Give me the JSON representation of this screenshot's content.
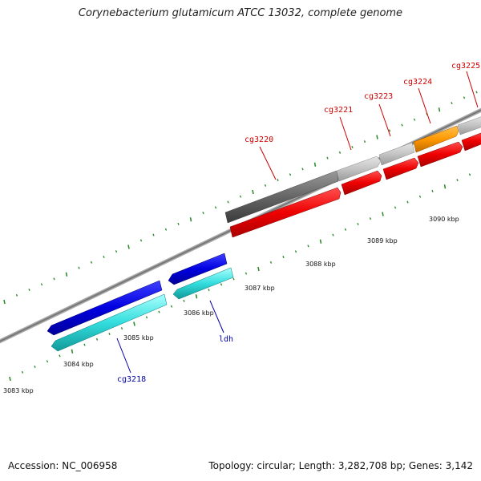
{
  "title": "Corynebacterium glutamicum ATCC 13032, complete genome",
  "footer": {
    "accession": "Accession: NC_006958",
    "summary": "Topology: circular; Length: 3,282,708 bp; Genes: 3,142"
  },
  "colors": {
    "backbone": "#888888",
    "tick": "#2e8b2e",
    "label_red": "#cc0000",
    "label_blue": "#0000aa"
  },
  "kbp_labels": [
    "3083 kbp",
    "3084 kbp",
    "3085 kbp",
    "3086 kbp",
    "3087 kbp",
    "3088 kbp",
    "3089 kbp",
    "3090 kbp"
  ],
  "gene_labels": [
    {
      "text": "cg3220",
      "color": "#cc0000"
    },
    {
      "text": "cg3221",
      "color": "#cc0000"
    },
    {
      "text": "cg3223",
      "color": "#cc0000"
    },
    {
      "text": "cg3224",
      "color": "#cc0000"
    },
    {
      "text": "cg3225",
      "color": "#cc0000"
    },
    {
      "text": "ldh",
      "color": "#0000aa"
    },
    {
      "text": "cg3218",
      "color": "#0000aa"
    }
  ]
}
